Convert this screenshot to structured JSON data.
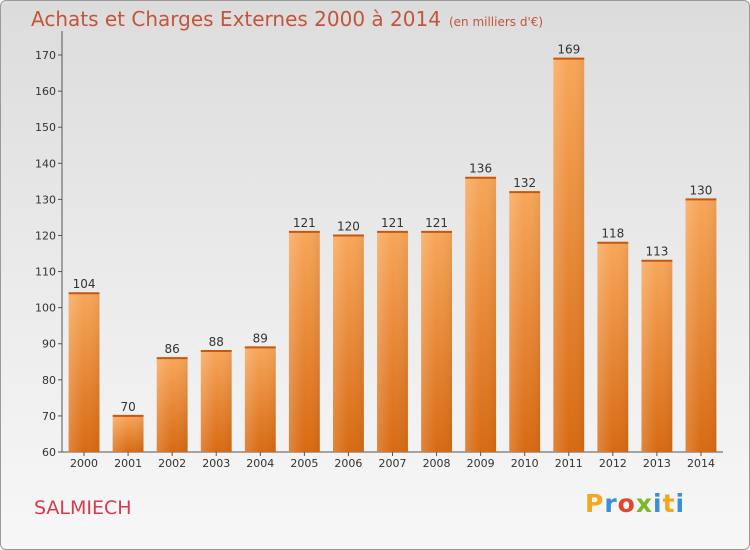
{
  "title": "Achats et Charges Externes 2000 à 2014",
  "unit": "(en milliers d'€)",
  "commune": "SALMIECH",
  "logo": {
    "text": "Proxiti"
  },
  "colors": {
    "bar_top": "#f7a659",
    "bar_bottom": "#d86a12",
    "title": "#c2563a",
    "commune": "#d63a4e"
  },
  "chart_data": {
    "type": "bar",
    "title": "Achats et Charges Externes 2000 à 2014",
    "categories": [
      "2000",
      "2001",
      "2002",
      "2003",
      "2004",
      "2005",
      "2006",
      "2007",
      "2008",
      "2009",
      "2010",
      "2011",
      "2012",
      "2013",
      "2014"
    ],
    "values": [
      104,
      70,
      86,
      88,
      89,
      121,
      120,
      121,
      121,
      136,
      132,
      169,
      118,
      113,
      130
    ],
    "yticks": [
      60,
      70,
      80,
      90,
      100,
      110,
      120,
      130,
      140,
      150,
      160,
      170
    ],
    "ylim": [
      60,
      175
    ],
    "grid": false,
    "data_labels": true
  }
}
